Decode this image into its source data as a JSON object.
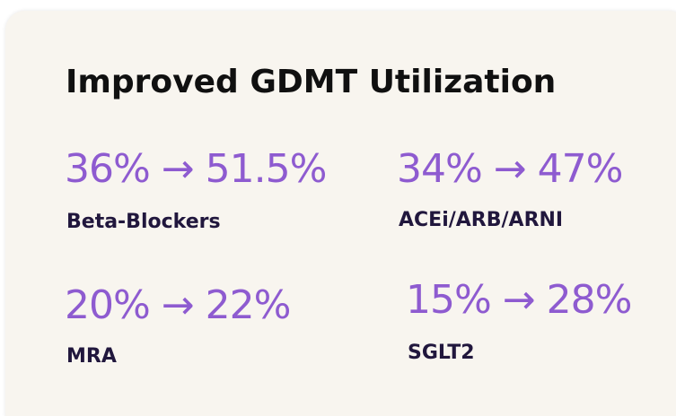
{
  "title": "Improved GDMT Utilization",
  "stats": [
    {
      "value": "36% → 51.5%",
      "label": "Beta-Blockers"
    },
    {
      "value": "34% → 47%",
      "label": "ACEi/ARB/ARNI"
    },
    {
      "value": "20% → 22%",
      "label": "MRA"
    },
    {
      "value": "15% → 28%",
      "label": "SGLT2"
    }
  ],
  "colors": {
    "card_background": "#f8f5ef",
    "value_accent": "#8e5bd0",
    "label_text": "#21173d",
    "title_text": "#101010"
  }
}
